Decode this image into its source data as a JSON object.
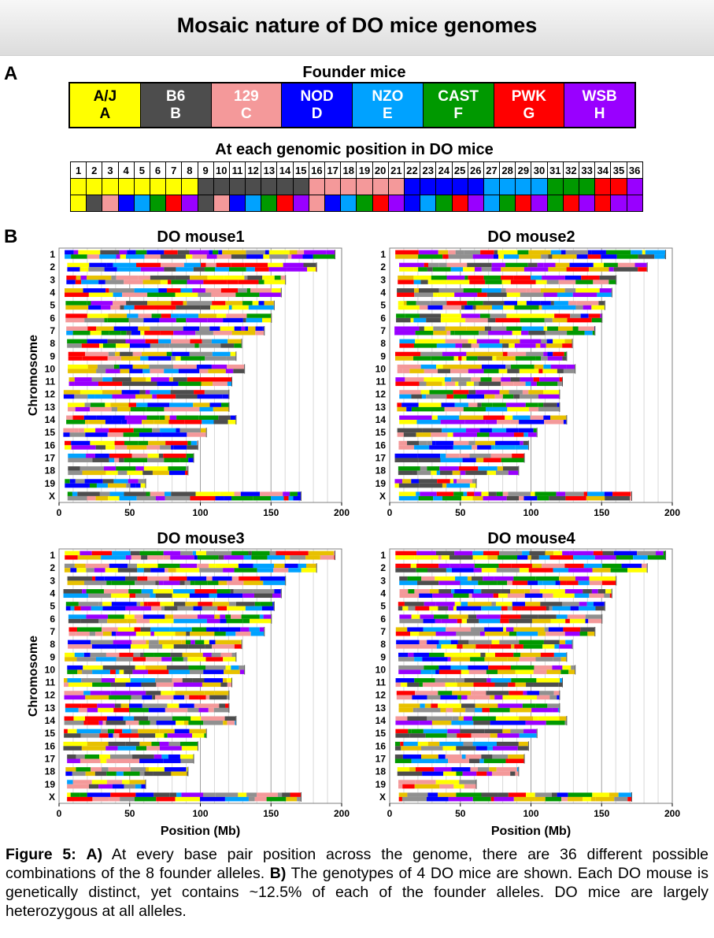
{
  "title": "Mosaic nature of DO mice genomes",
  "panel_a": {
    "letter": "A",
    "founders_title": "Founder mice",
    "founders": [
      {
        "strain": "A/J",
        "letter": "A",
        "color": "#ffff00",
        "text_color": "#000000"
      },
      {
        "strain": "B6",
        "letter": "B",
        "color": "#4d4d4d",
        "text_color": "#ffffff"
      },
      {
        "strain": "129",
        "letter": "C",
        "color": "#f4999a",
        "text_color": "#ffffff"
      },
      {
        "strain": "NOD",
        "letter": "D",
        "color": "#0000ff",
        "text_color": "#ffffff"
      },
      {
        "strain": "NZO",
        "letter": "E",
        "color": "#00a2ff",
        "text_color": "#ffffff"
      },
      {
        "strain": "CAST",
        "letter": "F",
        "color": "#009900",
        "text_color": "#ffffff"
      },
      {
        "strain": "PWK",
        "letter": "G",
        "color": "#ff0000",
        "text_color": "#ffffff"
      },
      {
        "strain": "WSB",
        "letter": "H",
        "color": "#9900ff",
        "text_color": "#ffffff"
      }
    ],
    "combos_title": "At each genomic position in DO mice",
    "combo_numbers": [
      "1",
      "2",
      "3",
      "4",
      "5",
      "6",
      "7",
      "8",
      "9",
      "10",
      "11",
      "12",
      "13",
      "14",
      "15",
      "16",
      "17",
      "18",
      "19",
      "20",
      "21",
      "22",
      "23",
      "24",
      "25",
      "26",
      "27",
      "28",
      "29",
      "30",
      "31",
      "32",
      "33",
      "34",
      "35",
      "36"
    ],
    "combo_top": [
      0,
      0,
      0,
      0,
      0,
      0,
      0,
      0,
      1,
      1,
      1,
      1,
      1,
      1,
      1,
      2,
      2,
      2,
      2,
      2,
      2,
      3,
      3,
      3,
      3,
      3,
      4,
      4,
      4,
      4,
      5,
      5,
      5,
      6,
      6,
      7
    ],
    "combo_bottom": [
      0,
      1,
      2,
      3,
      4,
      5,
      6,
      7,
      1,
      2,
      3,
      4,
      5,
      6,
      7,
      2,
      3,
      4,
      5,
      6,
      7,
      3,
      4,
      5,
      6,
      7,
      4,
      5,
      6,
      7,
      5,
      6,
      7,
      6,
      7,
      7
    ]
  },
  "panel_b": {
    "letter": "B",
    "mice": [
      {
        "name": "DO mouse1",
        "seed": 11
      },
      {
        "name": "DO mouse2",
        "seed": 29
      },
      {
        "name": "DO mouse3",
        "seed": 47
      },
      {
        "name": "DO mouse4",
        "seed": 83
      }
    ],
    "chromosomes": [
      {
        "label": "1",
        "length": 195
      },
      {
        "label": "2",
        "length": 182
      },
      {
        "label": "3",
        "length": 160
      },
      {
        "label": "4",
        "length": 157
      },
      {
        "label": "5",
        "length": 152
      },
      {
        "label": "6",
        "length": 150
      },
      {
        "label": "7",
        "length": 145
      },
      {
        "label": "8",
        "length": 129
      },
      {
        "label": "9",
        "length": 125
      },
      {
        "label": "10",
        "length": 131
      },
      {
        "label": "11",
        "length": 122
      },
      {
        "label": "12",
        "length": 120
      },
      {
        "label": "13",
        "length": 120
      },
      {
        "label": "14",
        "length": 125
      },
      {
        "label": "15",
        "length": 104
      },
      {
        "label": "16",
        "length": 98
      },
      {
        "label": "17",
        "length": 95
      },
      {
        "label": "18",
        "length": 91
      },
      {
        "label": "19",
        "length": 61
      },
      {
        "label": "X",
        "length": 171
      }
    ],
    "x_ticks": [
      0,
      50,
      100,
      150,
      200
    ],
    "x_range": [
      0,
      200
    ],
    "y_axis_label": "Chromosome",
    "x_axis_label": "Position (Mb)",
    "grid": "vertical every 10 Mb"
  },
  "caption": {
    "label": "Figure 5:",
    "a_label": "A)",
    "a_text": " At every base pair position across the genome, there are 36 different possible combinations of the 8 founder alleles. ",
    "b_label": "B)",
    "b_text": " The genotypes of 4 DO mice are shown. Each DO mouse is genetically distinct, yet contains ~12.5% of each of the founder alleles. DO mice are largely heterozygous at all alleles."
  }
}
